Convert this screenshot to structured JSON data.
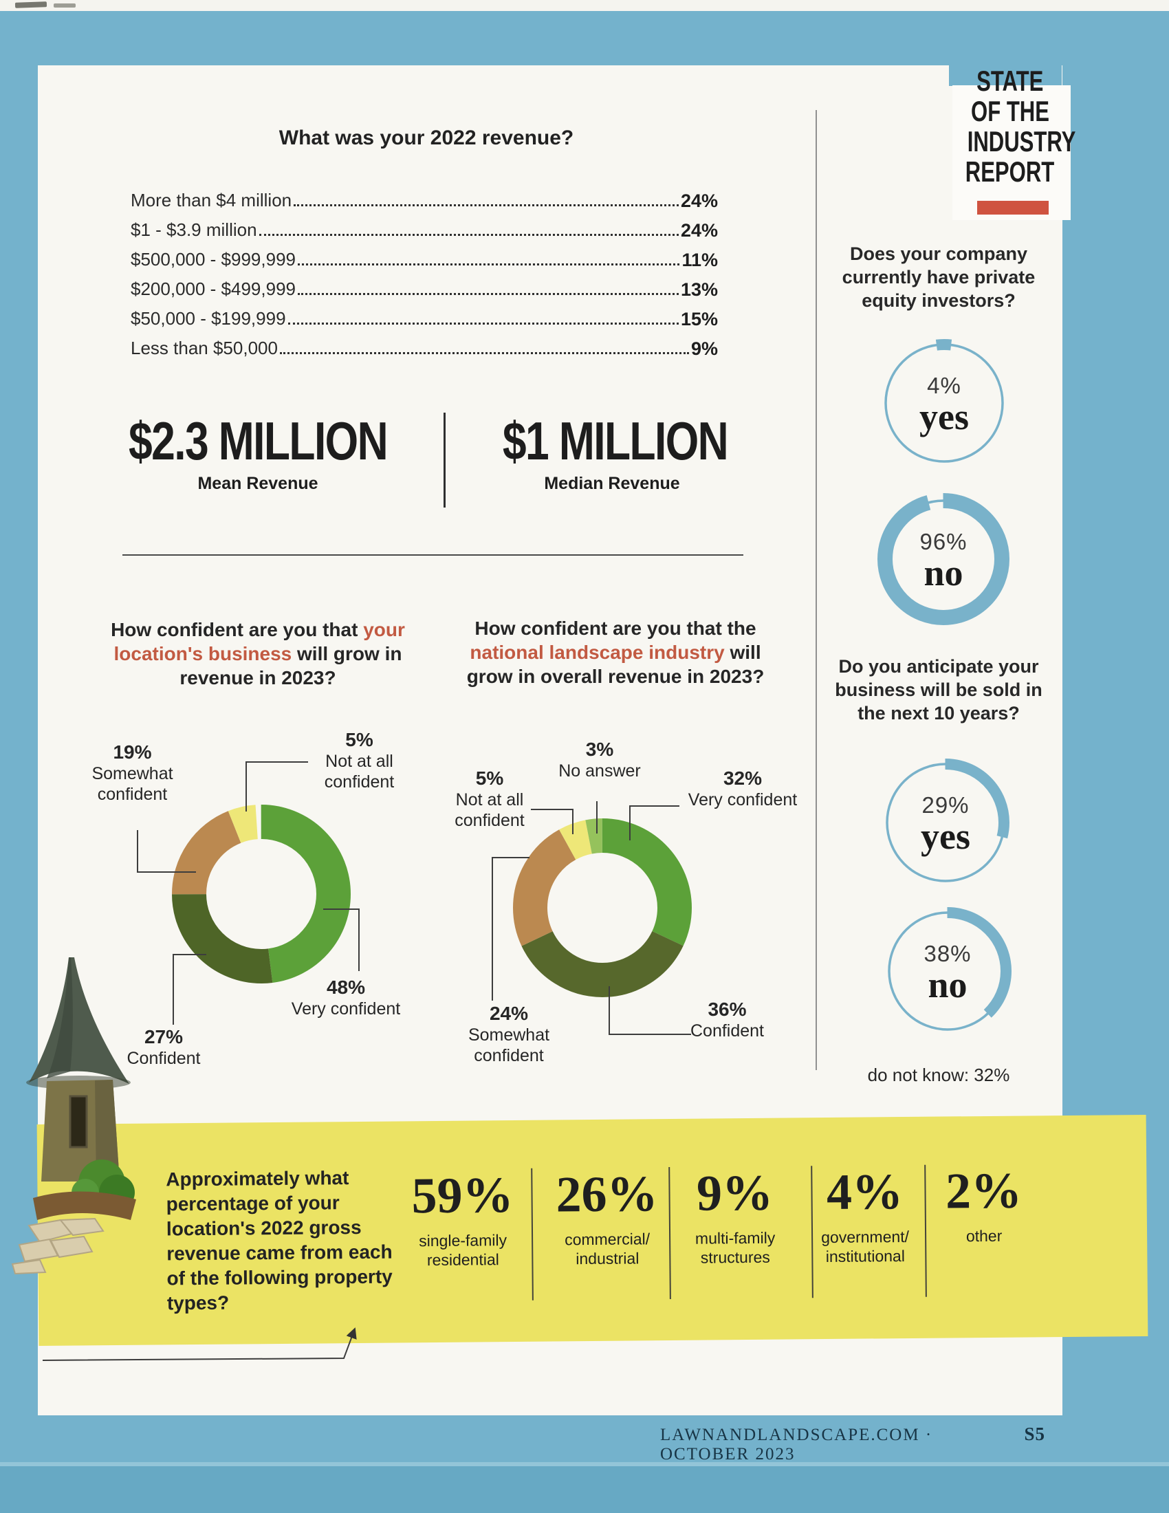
{
  "page": {
    "background_blue": "#74b2cc",
    "accent_red": "#cf5340",
    "banner_yellow": "#ebe364",
    "ring_blue": "#79b2ca",
    "footer": {
      "source": "LAWNANDLANDSCAPE.COM · OCTOBER 2023",
      "page_number": "S5"
    }
  },
  "masthead": {
    "line1": "STATE",
    "line2": "OF THE",
    "line3": "INDUSTRY",
    "line4": "REPORT"
  },
  "revenue_survey": {
    "title": "What was your 2022 revenue?",
    "rows": [
      {
        "label": "More than $4 million",
        "value": "24%"
      },
      {
        "label": "$1 - $3.9 million",
        "value": "24%"
      },
      {
        "label": "$500,000 - $999,999",
        "value": "11%"
      },
      {
        "label": "$200,000 - $499,999",
        "value": "13%"
      },
      {
        "label": "$50,000 - $199,999",
        "value": "15%"
      },
      {
        "label": "Less than $50,000",
        "value": "9%"
      }
    ],
    "mean": {
      "value": "$2.3 MILLION",
      "label": "Mean Revenue"
    },
    "median": {
      "value": "$1 MILLION",
      "label": "Median Revenue"
    }
  },
  "confidence_location": {
    "title_pre": "How confident are you that ",
    "title_highlight": "your location's business",
    "title_post": " will grow in revenue in 2023?",
    "labels": {
      "somewhat": {
        "pct": "19%",
        "text": "Somewhat confident"
      },
      "not_at_all": {
        "pct": "5%",
        "text": "Not at all confident"
      },
      "very": {
        "pct": "48%",
        "text": "Very confident"
      },
      "confident": {
        "pct": "27%",
        "text": "Confident"
      }
    },
    "slices": [
      {
        "name": "Very confident",
        "value": 48,
        "color": "#5ca139"
      },
      {
        "name": "Confident",
        "value": 27,
        "color": "#4e6527"
      },
      {
        "name": "Somewhat confident",
        "value": 19,
        "color": "#bb8950"
      },
      {
        "name": "Not at all confident",
        "value": 5,
        "color": "#eee778"
      }
    ]
  },
  "confidence_national": {
    "title_pre": "How confident are you that the ",
    "title_highlight": "national landscape industry",
    "title_post": " will grow in overall revenue in 2023?",
    "labels": {
      "not_at_all": {
        "pct": "5%",
        "text": "Not at all confident"
      },
      "no_answer": {
        "pct": "3%",
        "text": "No answer"
      },
      "very": {
        "pct": "32%",
        "text": "Very confident"
      },
      "somewhat": {
        "pct": "24%",
        "text": "Somewhat confident"
      },
      "confident": {
        "pct": "36%",
        "text": "Confident"
      }
    },
    "slices": [
      {
        "name": "Very confident",
        "value": 32,
        "color": "#5ca139"
      },
      {
        "name": "Confident",
        "value": 36,
        "color": "#57682c"
      },
      {
        "name": "Somewhat confident",
        "value": 24,
        "color": "#bb8950"
      },
      {
        "name": "Not at all confident",
        "value": 5,
        "color": "#eee778"
      },
      {
        "name": "No answer",
        "value": 3,
        "color": "#95c25c"
      }
    ]
  },
  "sidebar": {
    "private_equity": {
      "question": "Does your company currently have private equity investors?",
      "yes": {
        "pct": "4%",
        "word": "yes",
        "value": 4
      },
      "no": {
        "pct": "96%",
        "word": "no",
        "value": 96
      }
    },
    "sale": {
      "question": "Do you anticipate your business will be sold in the next 10 years?",
      "yes": {
        "pct": "29%",
        "word": "yes",
        "value": 29
      },
      "no": {
        "pct": "38%",
        "word": "no",
        "value": 38
      },
      "footnote": "do not know: 32%"
    }
  },
  "property_types": {
    "question": "Approximately what percentage of your location's 2022 gross revenue came from each of the following property types?",
    "stats": [
      {
        "value": "59%",
        "label": "single-family residential"
      },
      {
        "value": "26%",
        "label": "commercial/ industrial"
      },
      {
        "value": "9%",
        "label": "multi-family structures"
      },
      {
        "value": "4%",
        "label": "government/ institutional"
      },
      {
        "value": "2%",
        "label": "other"
      }
    ]
  },
  "chart_data": [
    {
      "type": "bar",
      "title": "What was your 2022 revenue?",
      "categories": [
        "More than $4 million",
        "$1 - $3.9 million",
        "$500,000 - $999,999",
        "$200,000 - $499,999",
        "$50,000 - $199,999",
        "Less than $50,000"
      ],
      "values": [
        24,
        24,
        11,
        13,
        15,
        9
      ],
      "unit": "%",
      "annotations": [
        "$2.3 MILLION Mean Revenue",
        "$1 MILLION Median Revenue"
      ]
    },
    {
      "type": "pie",
      "title": "How confident are you that your location's business will grow in revenue in 2023?",
      "categories": [
        "Very confident",
        "Confident",
        "Somewhat confident",
        "Not at all confident"
      ],
      "values": [
        48,
        27,
        19,
        5
      ],
      "unit": "%"
    },
    {
      "type": "pie",
      "title": "How confident are you that the national landscape industry will grow in overall revenue in 2023?",
      "categories": [
        "Very confident",
        "Confident",
        "Somewhat confident",
        "Not at all confident",
        "No answer"
      ],
      "values": [
        32,
        36,
        24,
        5,
        3
      ],
      "unit": "%"
    },
    {
      "type": "pie",
      "title": "Does your company currently have private equity investors?",
      "categories": [
        "yes",
        "no"
      ],
      "values": [
        4,
        96
      ],
      "unit": "%"
    },
    {
      "type": "pie",
      "title": "Do you anticipate your business will be sold in the next 10 years?",
      "categories": [
        "yes",
        "no",
        "do not know"
      ],
      "values": [
        29,
        38,
        32
      ],
      "unit": "%"
    },
    {
      "type": "bar",
      "title": "Approximately what percentage of your location's 2022 gross revenue came from each of the following property types?",
      "categories": [
        "single-family residential",
        "commercial/industrial",
        "multi-family structures",
        "government/institutional",
        "other"
      ],
      "values": [
        59,
        26,
        9,
        4,
        2
      ],
      "unit": "%"
    }
  ]
}
